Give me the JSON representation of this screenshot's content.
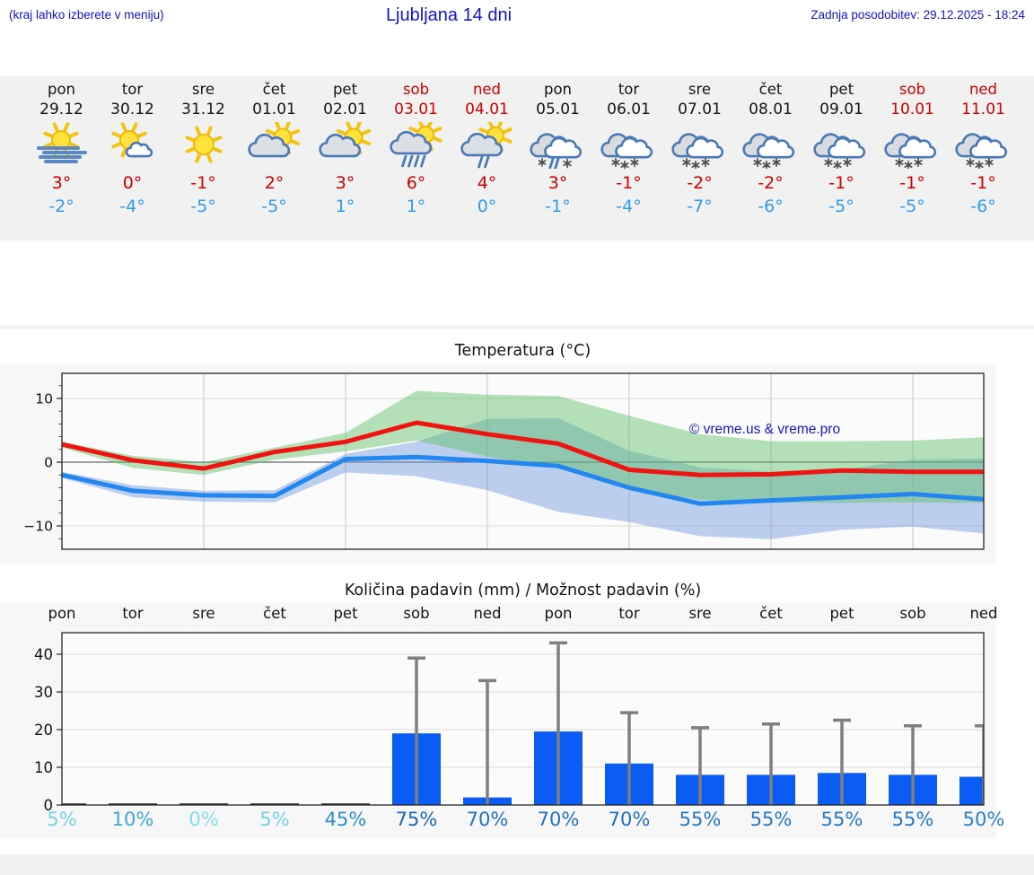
{
  "header": {
    "hint": "(kraj lahko izberete v meniju)",
    "title": "Ljubljana 14 dni",
    "updated": "Zadnja posodobitev: 29.12.2025 - 18:24",
    "color": "#1212d8"
  },
  "forecast": {
    "text_color": "#151515",
    "weekend_color": "#cf0000",
    "high_color": "#cf0000",
    "low_color": "#2d9bf0",
    "days": [
      {
        "name": "pon",
        "date": "29.12",
        "weekend": false,
        "icon": "sun-fog",
        "high": "3°",
        "low": "-2°"
      },
      {
        "name": "tor",
        "date": "30.12",
        "weekend": false,
        "icon": "sun-small-cloud",
        "high": "0°",
        "low": "-4°"
      },
      {
        "name": "sre",
        "date": "31.12",
        "weekend": false,
        "icon": "sun",
        "high": "-1°",
        "low": "-5°"
      },
      {
        "name": "čet",
        "date": "01.01",
        "weekend": false,
        "icon": "cloud-sun",
        "high": "2°",
        "low": "-5°"
      },
      {
        "name": "pet",
        "date": "02.01",
        "weekend": false,
        "icon": "cloud-sun",
        "high": "3°",
        "low": "1°"
      },
      {
        "name": "sob",
        "date": "03.01",
        "weekend": true,
        "icon": "sun-rain",
        "high": "6°",
        "low": "1°"
      },
      {
        "name": "ned",
        "date": "04.01",
        "weekend": true,
        "icon": "sun-light-rain",
        "high": "4°",
        "low": "0°"
      },
      {
        "name": "pon",
        "date": "05.01",
        "weekend": false,
        "icon": "sleet",
        "high": "3°",
        "low": "-1°"
      },
      {
        "name": "tor",
        "date": "06.01",
        "weekend": false,
        "icon": "snow",
        "high": "-1°",
        "low": "-4°"
      },
      {
        "name": "sre",
        "date": "07.01",
        "weekend": false,
        "icon": "snow",
        "high": "-2°",
        "low": "-7°"
      },
      {
        "name": "čet",
        "date": "08.01",
        "weekend": false,
        "icon": "snow",
        "high": "-2°",
        "low": "-6°"
      },
      {
        "name": "pet",
        "date": "09.01",
        "weekend": false,
        "icon": "snow",
        "high": "-1°",
        "low": "-5°"
      },
      {
        "name": "sob",
        "date": "10.01",
        "weekend": true,
        "icon": "snow",
        "high": "-1°",
        "low": "-5°"
      },
      {
        "name": "ned",
        "date": "11.01",
        "weekend": true,
        "icon": "snow",
        "high": "-1°",
        "low": "-6°"
      }
    ]
  },
  "chart_data": [
    {
      "type": "line",
      "title": "Temperatura (°C)",
      "watermark": "© vreme.us & vreme.pro",
      "watermark_color": "#1515cc",
      "x_categories": [
        "pon",
        "tor",
        "sre",
        "čet",
        "pet",
        "sob",
        "ned",
        "pon",
        "tor",
        "sre",
        "čet",
        "pet",
        "sob",
        "ned"
      ],
      "ylim": [
        -13.6,
        14.0
      ],
      "yticks": [
        -10,
        0,
        10
      ],
      "grid": true,
      "series": [
        {
          "name": "max-temp",
          "color": "#ee1411",
          "values": [
            2.8,
            0.3,
            -1.0,
            1.6,
            3.2,
            6.2,
            4.4,
            2.9,
            -1.2,
            -2.0,
            -1.9,
            -1.3,
            -1.5,
            -1.5
          ]
        },
        {
          "name": "min-temp",
          "color": "#2288f0",
          "values": [
            -2.0,
            -4.5,
            -5.2,
            -5.3,
            0.5,
            0.8,
            0.2,
            -0.6,
            -4.0,
            -6.5,
            -6.0,
            -5.5,
            -5.0,
            -5.8
          ]
        }
      ],
      "bands": [
        {
          "name": "min-temp-range",
          "color": "rgba(110,150,220,0.45)",
          "top": [
            -1.5,
            -3.6,
            -4.5,
            -4.4,
            1.3,
            3.2,
            6.8,
            6.9,
            1.8,
            -0.8,
            -1.5,
            -1.2,
            0.4,
            0.6
          ],
          "bottom": [
            -2.5,
            -5.5,
            -6.2,
            -6.3,
            -1.6,
            -2.2,
            -4.4,
            -7.8,
            -9.4,
            -11.6,
            -12.1,
            -10.6,
            -10.1,
            -11.2
          ]
        },
        {
          "name": "max-temp-range",
          "color": "rgba(90,190,100,0.45)",
          "top": [
            3.2,
            1.0,
            0.0,
            2.3,
            4.6,
            11.2,
            10.6,
            10.4,
            7.3,
            4.4,
            3.3,
            3.3,
            3.4,
            3.9
          ],
          "bottom": [
            2.3,
            -0.9,
            -2.0,
            0.4,
            1.7,
            3.4,
            0.9,
            -0.9,
            -4.2,
            -5.9,
            -6.4,
            -6.4,
            -6.3,
            -6.4
          ]
        }
      ]
    },
    {
      "type": "bar",
      "title": "Količina padavin (mm) / Možnost padavin (%)",
      "categories": [
        "pon",
        "tor",
        "sre",
        "čet",
        "pet",
        "sob",
        "ned",
        "pon",
        "tor",
        "sre",
        "čet",
        "pet",
        "sob",
        "ned"
      ],
      "values": [
        0,
        0,
        0,
        0,
        0,
        19,
        2,
        19.5,
        11,
        8,
        8,
        8.5,
        8,
        7.5
      ],
      "errors_max": [
        null,
        null,
        null,
        null,
        null,
        39,
        33,
        43,
        24.5,
        20.5,
        21.5,
        22.5,
        21,
        21
      ],
      "probabilities": [
        "5%",
        "10%",
        "0%",
        "5%",
        "45%",
        "75%",
        "70%",
        "70%",
        "70%",
        "55%",
        "55%",
        "55%",
        "55%",
        "50%"
      ],
      "prob_colors": [
        "#74d2e2",
        "#41a6d2",
        "#83dcea",
        "#74d2e2",
        "#2e8fc9",
        "#1d66ba",
        "#2270c0",
        "#2270c0",
        "#2270c0",
        "#2678c2",
        "#2678c2",
        "#2678c2",
        "#2678c2",
        "#2c80c6"
      ],
      "bar_color": "#0b5bf5",
      "bar_base_color": "#30343c",
      "error_color": "#7f7f7f",
      "ylim": [
        0,
        45.7
      ],
      "yticks": [
        0,
        10,
        20,
        30,
        40
      ],
      "grid": true
    }
  ]
}
